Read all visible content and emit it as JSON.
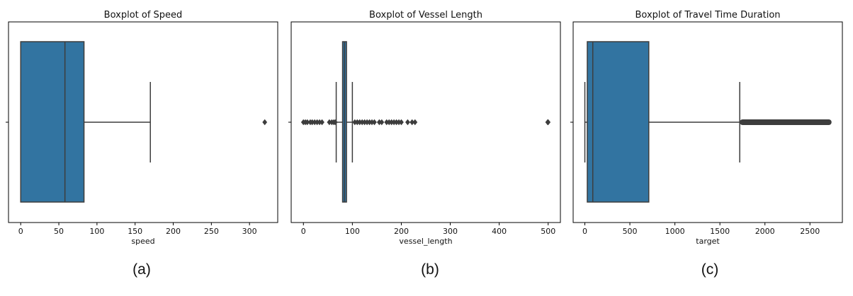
{
  "chart_data": [
    {
      "type": "boxplot",
      "title": "Boxplot of Speed",
      "xlabel": "speed",
      "caption": "(a)",
      "xlim": [
        -16,
        337
      ],
      "xticks": [
        0,
        50,
        100,
        150,
        200,
        250,
        300
      ],
      "box": {
        "q1": 0,
        "median": 58,
        "q3": 83,
        "whisker_low": 0,
        "whisker_high": 170
      },
      "outliers": [
        320
      ],
      "color": "#3274a1"
    },
    {
      "type": "boxplot",
      "title": "Boxplot of Vessel Length",
      "xlabel": "vessel_length",
      "caption": "(b)",
      "xlim": [
        -25,
        525
      ],
      "xticks": [
        0,
        100,
        200,
        300,
        400,
        500
      ],
      "box": {
        "q1": 80,
        "median": 84,
        "q3": 88,
        "whisker_low": 67,
        "whisker_high": 100
      },
      "outliers": [
        0,
        4,
        8,
        14,
        18,
        23,
        28,
        33,
        38,
        53,
        58,
        62,
        65,
        105,
        110,
        115,
        120,
        125,
        130,
        135,
        140,
        145,
        155,
        160,
        170,
        175,
        180,
        185,
        190,
        195,
        200,
        213,
        222,
        228,
        499,
        500
      ],
      "color": "#3274a1"
    },
    {
      "type": "boxplot",
      "title": "Boxplot of Travel Time Duration",
      "xlabel": "target",
      "caption": "(c)",
      "xlim": [
        -130,
        2860
      ],
      "xticks": [
        0,
        500,
        1000,
        1500,
        2000,
        2500
      ],
      "box": {
        "q1": 27,
        "median": 88,
        "q3": 710,
        "whisker_low": 0,
        "whisker_high": 1720
      },
      "outliers_range": [
        1720,
        2740
      ],
      "color": "#3274a1"
    }
  ]
}
